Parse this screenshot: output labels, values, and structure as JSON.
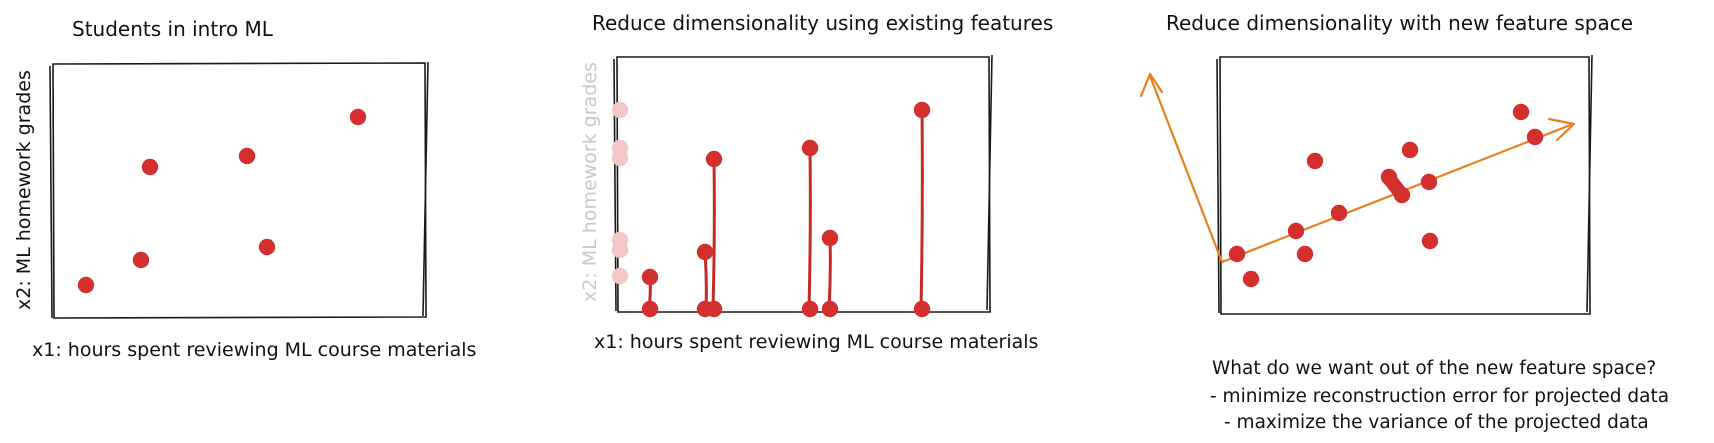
{
  "colors": {
    "point": "#d32f2f",
    "point_faded": "#f4c7c7",
    "projection_line": "#c62828",
    "new_axis": "#e8801e",
    "frame": "#1a1a1a",
    "text": "#111111",
    "text_faded": "#c8c8c8"
  },
  "panel1": {
    "title": "Students in intro ML",
    "xlabel": "x1: hours spent reviewing ML course materials",
    "ylabel": "x2: ML homework grades"
  },
  "panel2": {
    "title": "Reduce dimensionality using existing features",
    "xlabel": "x1: hours spent reviewing ML course materials",
    "ylabel_faded": "x2: ML homework grades"
  },
  "panel3": {
    "title": "Reduce dimensionality with new feature space",
    "question": "What do we want out of the new feature space?",
    "goals": [
      "- minimize reconstruction error for projected data",
      "- maximize the variance of the projected data"
    ]
  }
}
